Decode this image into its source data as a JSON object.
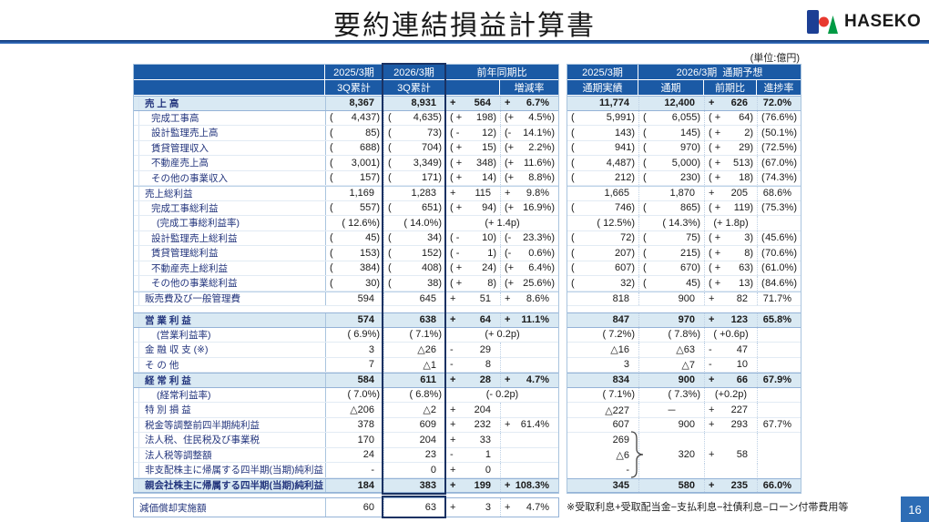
{
  "title": "要約連結損益計算書",
  "unit_label": "(単位:億円)",
  "logo": {
    "brand": "HASEKO",
    "blue": "#1c3f94",
    "red": "#e8392f",
    "green": "#009a44"
  },
  "page_number": "16",
  "footnote": "※受取利息+受取配当金−支払利息−社債利息−ローン付帯費用等",
  "colors": {
    "header_bg": "#1b5aa5",
    "highlight_row_bg": "#d9e9f3",
    "label_navy": "#23357d",
    "current_column_box": "#1a3263",
    "page_box": "#2e6db5",
    "title_rule": "#0e3472"
  },
  "table": {
    "header": {
      "q_prev": "2025/3期",
      "q_prev_sub": "3Q累計",
      "q_curr": "2026/3期",
      "q_curr_sub": "3Q累計",
      "yoy": "前年同期比",
      "yoy_sub": "増減率",
      "fy_prev": "2025/3期",
      "fy_prev_sub": "通期実績",
      "fy_forecast": "2026/3期  通期予想",
      "fy_total": "通期",
      "fy_diff": "前期比",
      "fy_progress": "進捗率"
    },
    "rows": [
      {
        "label": "売 上 高",
        "ind": 0,
        "hl": true,
        "c": [
          "8,367",
          "8,931",
          "+|564",
          "+|6.7%",
          "11,774",
          "12,400",
          "+|626",
          "72.0%"
        ]
      },
      {
        "label": "完成工事高",
        "ind": 1,
        "c": [
          "(|4,437)",
          "(|4,635)",
          "( +|198)",
          "(+|4.5%)",
          "(|5,991)",
          "(|6,055)",
          "( +|64)",
          "(|76.6%)"
        ]
      },
      {
        "label": "設計監理売上高",
        "ind": 1,
        "c": [
          "(|85)",
          "(|73)",
          "( -|12)",
          "(-|14.1%)",
          "(|143)",
          "(|145)",
          "( +|2)",
          "(|50.1%)"
        ]
      },
      {
        "label": "賃貸管理収入",
        "ind": 1,
        "c": [
          "(|688)",
          "(|704)",
          "( +|15)",
          "(+|2.2%)",
          "(|941)",
          "(|970)",
          "( +|29)",
          "(|72.5%)"
        ]
      },
      {
        "label": "不動産売上高",
        "ind": 1,
        "c": [
          "(|3,001)",
          "(|3,349)",
          "( +|348)",
          "(+|11.6%)",
          "(|4,487)",
          "(|5,000)",
          "( +|513)",
          "(|67.0%)"
        ]
      },
      {
        "label": "その他の事業収入",
        "ind": 1,
        "c": [
          "(|157)",
          "(|171)",
          "( +|14)",
          "(+|8.8%)",
          "(|212)",
          "(|230)",
          "( +|18)",
          "(|74.3%)"
        ]
      },
      {
        "label": "売上総利益",
        "ind": 0,
        "sep": true,
        "c": [
          "1,169",
          "1,283",
          "+|115",
          "+|9.8%",
          "1,665",
          "1,870",
          "+|205",
          "68.6%"
        ]
      },
      {
        "label": "完成工事総利益",
        "ind": 1,
        "c": [
          "(|557)",
          "(|651)",
          "( +|94)",
          "(+|16.9%)",
          "(|746)",
          "(|865)",
          "( +|119)",
          "(|75.3%)"
        ]
      },
      {
        "label": "(完成工事総利益率)",
        "ind": 2,
        "span34": true,
        "c": [
          "( 12.6%)",
          "( 14.0%)",
          "(+ 1.4p)",
          "",
          "( 12.5%)",
          "( 14.3%)",
          "c:(+ 1.8p)",
          ""
        ]
      },
      {
        "label": "設計監理売上総利益",
        "ind": 1,
        "c": [
          "(|45)",
          "(|34)",
          "( -|10)",
          "(-|23.3%)",
          "(|72)",
          "(|75)",
          "( +|3)",
          "(|45.6%)"
        ]
      },
      {
        "label": "賃貸管理総利益",
        "ind": 1,
        "c": [
          "(|153)",
          "(|152)",
          "( -|1)",
          "(-|0.6%)",
          "(|207)",
          "(|215)",
          "( +|8)",
          "(|70.6%)"
        ]
      },
      {
        "label": "不動産売上総利益",
        "ind": 1,
        "c": [
          "(|384)",
          "(|408)",
          "( +|24)",
          "(+|6.4%)",
          "(|607)",
          "(|670)",
          "( +|63)",
          "(|61.0%)"
        ]
      },
      {
        "label": "その他の事業総利益",
        "ind": 1,
        "c": [
          "(|30)",
          "(|38)",
          "( +|8)",
          "(+|25.6%)",
          "(|32)",
          "(|45)",
          "( +|13)",
          "(|84.6%)"
        ]
      },
      {
        "label": "販売費及び一般管理費",
        "ind": 0,
        "sep": true,
        "c": [
          "594",
          "645",
          "+|51",
          "+|8.6%",
          "818",
          "900",
          "+|82",
          "71.7%"
        ]
      },
      {
        "spacer": true
      },
      {
        "label": "営 業 利 益",
        "ind": 0,
        "hl": true,
        "c": [
          "574",
          "638",
          "+|64",
          "+|11.1%",
          "847",
          "970",
          "+|123",
          "65.8%"
        ]
      },
      {
        "label": "(営業利益率)",
        "ind": 2,
        "span34": true,
        "c": [
          "( 6.9%)",
          "( 7.1%)",
          "(+ 0.2p)",
          "",
          "( 7.2%)",
          "( 7.8%)",
          "c:( +0.6p)",
          ""
        ]
      },
      {
        "label": "金 融 収 支 (※)",
        "ind": 0,
        "c": [
          "3",
          "△26",
          "-|29",
          "",
          "△16",
          "△63",
          "-|47",
          ""
        ]
      },
      {
        "label": "そ の 他",
        "ind": 0,
        "c": [
          "7",
          "△1",
          "-|8",
          "",
          "3",
          "△7",
          "-|10",
          ""
        ]
      },
      {
        "label": "経 常 利 益",
        "ind": 0,
        "hl": true,
        "c": [
          "584",
          "611",
          "+|28",
          "+|4.7%",
          "834",
          "900",
          "+|66",
          "67.9%"
        ]
      },
      {
        "label": "(経常利益率)",
        "ind": 2,
        "span34": true,
        "c": [
          "( 7.0%)",
          "( 6.8%)",
          "(- 0.2p)",
          "",
          "( 7.1%)",
          "( 7.3%)",
          "c:(+0.2p)",
          ""
        ]
      },
      {
        "label": "特 別 損 益",
        "ind": 0,
        "c": [
          "△206",
          "△2",
          "+|204",
          "",
          "△227",
          "c:－",
          "+|227",
          ""
        ]
      },
      {
        "label": "税金等調整前四半期純利益",
        "ind": 0,
        "c": [
          "378",
          "609",
          "+|232",
          "+|61.4%",
          "607",
          "900",
          "+|293",
          "67.7%"
        ]
      },
      {
        "label": "法人税、住民税及び事業税",
        "ind": 0,
        "rnb": true,
        "c": [
          "170",
          "204",
          "+|33",
          "",
          "269",
          "",
          "",
          ""
        ]
      },
      {
        "label": "法人税等調整額",
        "ind": 0,
        "rnb": true,
        "c": [
          "24",
          "23",
          "-|1",
          "",
          "△6",
          "320",
          "+|58",
          ""
        ]
      },
      {
        "label": "非支配株主に帰属する四半期(当期)純利益",
        "ind": 0,
        "rnb": true,
        "c": [
          "-",
          "0",
          "+|0",
          "",
          "-",
          "",
          "",
          ""
        ]
      },
      {
        "label": "親会社株主に帰属する四半期(当期)純利益",
        "ind": 0,
        "hl": true,
        "c": [
          "184",
          "383",
          "+|199",
          "+|108.3%",
          "345",
          "580",
          "+|235",
          "66.0%"
        ]
      }
    ]
  },
  "depreciation": {
    "label": "減価償却実施額",
    "c": [
      "60",
      "63",
      "+|3",
      "+|4.7%"
    ]
  }
}
